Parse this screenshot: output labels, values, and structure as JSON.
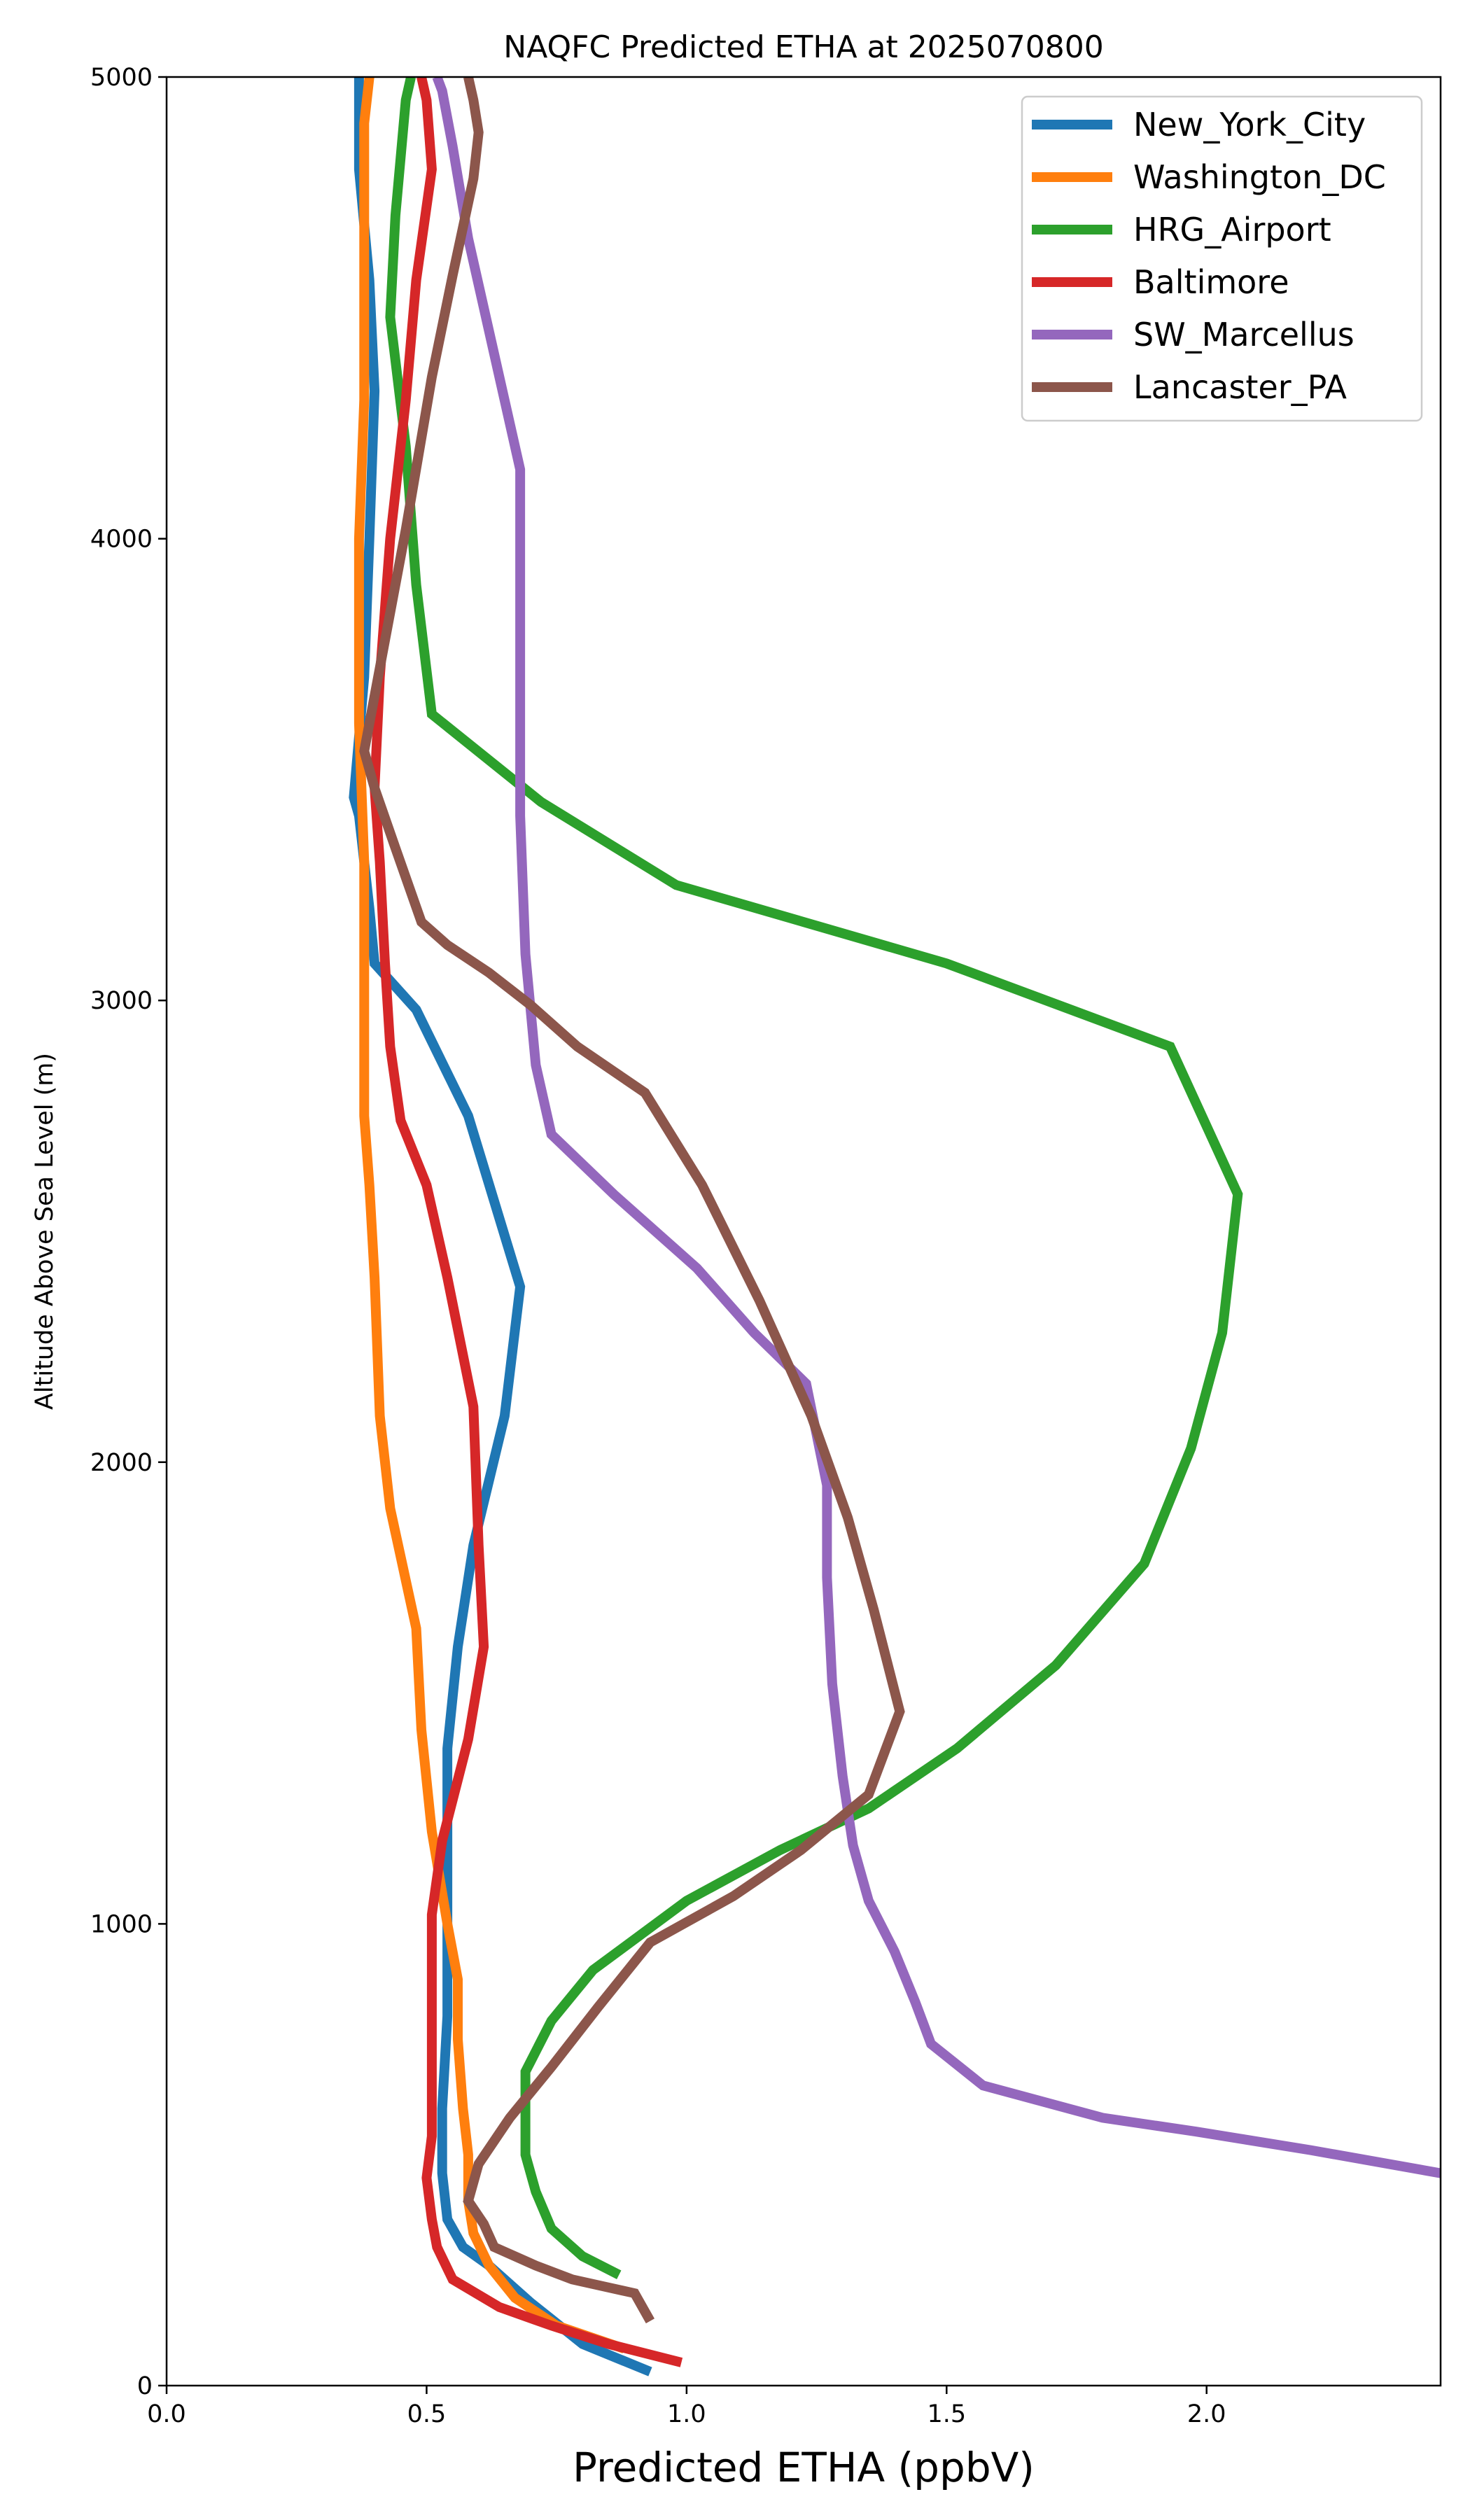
{
  "chart_data": {
    "type": "line",
    "title": "NAQFC Predicted ETHA at 2025070800",
    "xlabel": "Predicted ETHA (ppbV)",
    "ylabel": "Altitude Above Sea Level (m)",
    "xlim": [
      0,
      2.45
    ],
    "ylim": [
      0,
      5000
    ],
    "xticks": [
      "0.0",
      "0.5",
      "1.0",
      "1.5",
      "2.0"
    ],
    "xtick_values": [
      0,
      0.5,
      1.0,
      1.5,
      2.0
    ],
    "yticks": [
      "0",
      "1000",
      "2000",
      "3000",
      "4000",
      "5000"
    ],
    "ytick_values": [
      0,
      1000,
      2000,
      3000,
      4000,
      5000
    ],
    "grid": false,
    "legend_position": "top-right",
    "series": [
      {
        "name": "New_York_City",
        "color": "#1f77b4",
        "points": [
          [
            0.93,
            30
          ],
          [
            0.8,
            90
          ],
          [
            0.7,
            180
          ],
          [
            0.62,
            260
          ],
          [
            0.57,
            300
          ],
          [
            0.54,
            360
          ],
          [
            0.53,
            460
          ],
          [
            0.53,
            600
          ],
          [
            0.54,
            800
          ],
          [
            0.54,
            1050
          ],
          [
            0.54,
            1200
          ],
          [
            0.54,
            1380
          ],
          [
            0.56,
            1600
          ],
          [
            0.59,
            1820
          ],
          [
            0.65,
            2100
          ],
          [
            0.68,
            2380
          ],
          [
            0.58,
            2750
          ],
          [
            0.48,
            2980
          ],
          [
            0.4,
            3080
          ],
          [
            0.39,
            3200
          ],
          [
            0.37,
            3400
          ],
          [
            0.36,
            3440
          ],
          [
            0.38,
            3700
          ],
          [
            0.39,
            4000
          ],
          [
            0.4,
            4320
          ],
          [
            0.39,
            4560
          ],
          [
            0.37,
            4800
          ],
          [
            0.37,
            5000
          ]
        ]
      },
      {
        "name": "Washington_DC",
        "color": "#ff7f0e",
        "points": [
          [
            0.88,
            80
          ],
          [
            0.75,
            130
          ],
          [
            0.67,
            190
          ],
          [
            0.62,
            260
          ],
          [
            0.59,
            330
          ],
          [
            0.58,
            400
          ],
          [
            0.58,
            500
          ],
          [
            0.57,
            600
          ],
          [
            0.56,
            750
          ],
          [
            0.56,
            880
          ],
          [
            0.54,
            1000
          ],
          [
            0.51,
            1200
          ],
          [
            0.49,
            1420
          ],
          [
            0.48,
            1640
          ],
          [
            0.43,
            1900
          ],
          [
            0.41,
            2100
          ],
          [
            0.4,
            2400
          ],
          [
            0.39,
            2600
          ],
          [
            0.38,
            2750
          ],
          [
            0.38,
            3000
          ],
          [
            0.38,
            3300
          ],
          [
            0.37,
            3600
          ],
          [
            0.37,
            4000
          ],
          [
            0.38,
            4300
          ],
          [
            0.38,
            4600
          ],
          [
            0.38,
            4900
          ],
          [
            0.39,
            5000
          ]
        ]
      },
      {
        "name": "HRG_Airport",
        "color": "#2ca02c",
        "points": [
          [
            0.87,
            240
          ],
          [
            0.8,
            280
          ],
          [
            0.74,
            340
          ],
          [
            0.71,
            420
          ],
          [
            0.69,
            500
          ],
          [
            0.69,
            600
          ],
          [
            0.69,
            680
          ],
          [
            0.74,
            790
          ],
          [
            0.82,
            900
          ],
          [
            1.0,
            1050
          ],
          [
            1.18,
            1160
          ],
          [
            1.35,
            1250
          ],
          [
            1.52,
            1380
          ],
          [
            1.71,
            1560
          ],
          [
            1.88,
            1780
          ],
          [
            1.97,
            2030
          ],
          [
            2.03,
            2280
          ],
          [
            2.06,
            2580
          ],
          [
            1.93,
            2900
          ],
          [
            1.5,
            3080
          ],
          [
            0.98,
            3250
          ],
          [
            0.72,
            3430
          ],
          [
            0.51,
            3620
          ],
          [
            0.48,
            3900
          ],
          [
            0.46,
            4200
          ],
          [
            0.43,
            4480
          ],
          [
            0.44,
            4700
          ],
          [
            0.46,
            4950
          ],
          [
            0.47,
            5000
          ]
        ]
      },
      {
        "name": "Baltimore",
        "color": "#d62728",
        "points": [
          [
            0.99,
            50
          ],
          [
            0.85,
            90
          ],
          [
            0.74,
            130
          ],
          [
            0.64,
            170
          ],
          [
            0.55,
            230
          ],
          [
            0.52,
            300
          ],
          [
            0.51,
            360
          ],
          [
            0.5,
            450
          ],
          [
            0.51,
            540
          ],
          [
            0.51,
            650
          ],
          [
            0.51,
            740
          ],
          [
            0.51,
            880
          ],
          [
            0.51,
            1020
          ],
          [
            0.53,
            1180
          ],
          [
            0.58,
            1400
          ],
          [
            0.61,
            1600
          ],
          [
            0.6,
            1820
          ],
          [
            0.59,
            2120
          ],
          [
            0.54,
            2400
          ],
          [
            0.5,
            2600
          ],
          [
            0.45,
            2740
          ],
          [
            0.43,
            2900
          ],
          [
            0.42,
            3080
          ],
          [
            0.41,
            3300
          ],
          [
            0.4,
            3460
          ],
          [
            0.41,
            3700
          ],
          [
            0.43,
            4000
          ],
          [
            0.46,
            4300
          ],
          [
            0.48,
            4560
          ],
          [
            0.51,
            4800
          ],
          [
            0.5,
            4950
          ],
          [
            0.49,
            5000
          ]
        ]
      },
      {
        "name": "SW_Marcellus",
        "color": "#9467bd",
        "points": [
          [
            2.45,
            460
          ],
          [
            2.2,
            510
          ],
          [
            1.98,
            550
          ],
          [
            1.8,
            580
          ],
          [
            1.57,
            650
          ],
          [
            1.47,
            740
          ],
          [
            1.44,
            830
          ],
          [
            1.4,
            940
          ],
          [
            1.35,
            1050
          ],
          [
            1.32,
            1170
          ],
          [
            1.3,
            1320
          ],
          [
            1.28,
            1520
          ],
          [
            1.27,
            1750
          ],
          [
            1.27,
            1950
          ],
          [
            1.23,
            2170
          ],
          [
            1.13,
            2280
          ],
          [
            1.02,
            2420
          ],
          [
            0.86,
            2580
          ],
          [
            0.74,
            2710
          ],
          [
            0.71,
            2860
          ],
          [
            0.7,
            2980
          ],
          [
            0.69,
            3100
          ],
          [
            0.68,
            3400
          ],
          [
            0.68,
            3750
          ],
          [
            0.68,
            4150
          ],
          [
            0.63,
            4400
          ],
          [
            0.58,
            4650
          ],
          [
            0.55,
            4850
          ],
          [
            0.53,
            4970
          ],
          [
            0.52,
            5000
          ]
        ]
      },
      {
        "name": "Lancaster_PA",
        "color": "#8c564b",
        "points": [
          [
            0.93,
            140
          ],
          [
            0.9,
            200
          ],
          [
            0.78,
            230
          ],
          [
            0.71,
            260
          ],
          [
            0.63,
            300
          ],
          [
            0.61,
            350
          ],
          [
            0.58,
            400
          ],
          [
            0.6,
            480
          ],
          [
            0.66,
            580
          ],
          [
            0.74,
            690
          ],
          [
            0.83,
            820
          ],
          [
            0.93,
            960
          ],
          [
            1.09,
            1060
          ],
          [
            1.22,
            1160
          ],
          [
            1.35,
            1280
          ],
          [
            1.41,
            1460
          ],
          [
            1.36,
            1680
          ],
          [
            1.31,
            1880
          ],
          [
            1.24,
            2100
          ],
          [
            1.14,
            2350
          ],
          [
            1.03,
            2600
          ],
          [
            0.92,
            2800
          ],
          [
            0.79,
            2900
          ],
          [
            0.7,
            2990
          ],
          [
            0.62,
            3060
          ],
          [
            0.54,
            3120
          ],
          [
            0.49,
            3170
          ],
          [
            0.44,
            3330
          ],
          [
            0.4,
            3460
          ],
          [
            0.38,
            3540
          ],
          [
            0.42,
            3780
          ],
          [
            0.46,
            4020
          ],
          [
            0.51,
            4350
          ],
          [
            0.55,
            4570
          ],
          [
            0.59,
            4780
          ],
          [
            0.6,
            4880
          ],
          [
            0.59,
            4950
          ],
          [
            0.58,
            5000
          ]
        ]
      }
    ]
  }
}
